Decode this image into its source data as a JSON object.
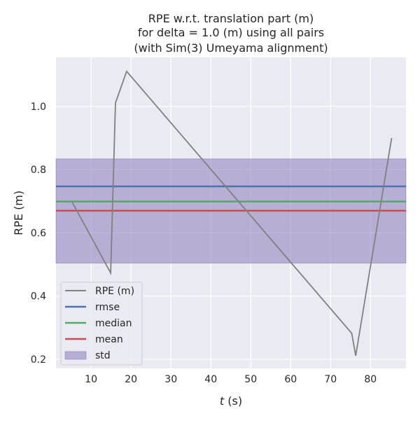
{
  "chart_data": {
    "type": "line",
    "title": [
      "RPE w.r.t. translation part (m)",
      "for delta = 1.0 (m) using all pairs",
      "(with Sim(3) Umeyama alignment)"
    ],
    "xlabel": "t (s)",
    "xlabel_italic": "t",
    "xlabel_unit": " (s)",
    "ylabel": "RPE (m)",
    "xlim": [
      1.2,
      88.9
    ],
    "ylim": [
      0.171,
      1.155
    ],
    "xticks": [
      10,
      20,
      30,
      40,
      50,
      60,
      70,
      80
    ],
    "yticks": [
      0.2,
      0.4,
      0.6,
      0.8,
      1.0
    ],
    "ytick_labels": [
      "0.2",
      "0.4",
      "0.6",
      "0.8",
      "1.0"
    ],
    "grid": true,
    "legend_position": "lower-left",
    "series": [
      {
        "name": "RPE (m)",
        "color": "#808080",
        "x": [
          5.3,
          14.9,
          16.1,
          18.9,
          75.3,
          76.3,
          85.3
        ],
        "y": [
          0.696,
          0.473,
          1.011,
          1.111,
          0.282,
          0.211,
          0.9
        ]
      }
    ],
    "stats": [
      {
        "name": "rmse",
        "value": 0.747,
        "color": "#4c72b0"
      },
      {
        "name": "median",
        "value": 0.699,
        "color": "#55a868"
      },
      {
        "name": "mean",
        "value": 0.67,
        "color": "#c44e52"
      }
    ],
    "std": {
      "name": "std",
      "low": 0.504,
      "high": 0.834,
      "color": "#8172b3"
    },
    "background": "#eaeaf2"
  }
}
